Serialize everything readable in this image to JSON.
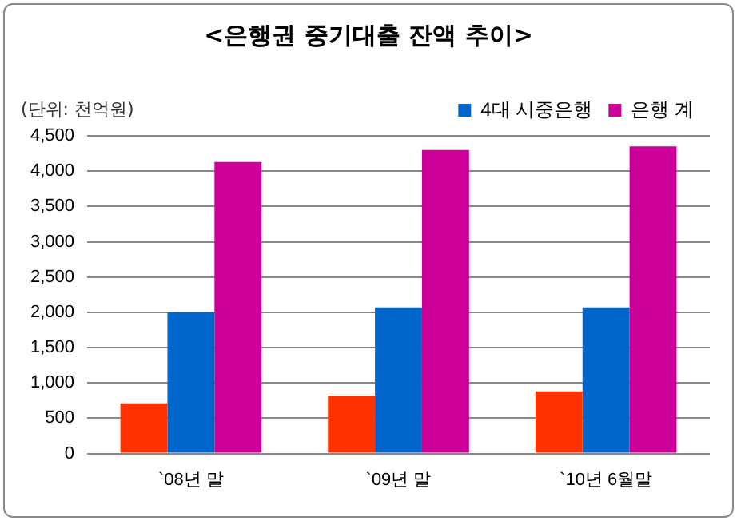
{
  "chart_data": {
    "type": "bar",
    "title": "<은행권 중기대출 잔액 추이>",
    "ylabel": "(단위: 천억원)",
    "categories": [
      "`08년 말",
      "`09년 말",
      "`10년 6월말"
    ],
    "series": [
      {
        "color": "#ff3300",
        "values": [
          710,
          820,
          880
        ]
      },
      {
        "name": "4대 시중은행",
        "color": "#0066cc",
        "values": [
          2000,
          2070,
          2070
        ]
      },
      {
        "name": "은행 계",
        "color": "#cc0099",
        "values": [
          4130,
          4300,
          4350
        ]
      }
    ],
    "ylim": [
      0,
      4500
    ],
    "yticks": [
      {
        "value": 0,
        "label": "0"
      },
      {
        "value": 500,
        "label": "500"
      },
      {
        "value": 1000,
        "label": "1,000"
      },
      {
        "value": 1500,
        "label": "1,500"
      },
      {
        "value": 2000,
        "label": "2,000"
      },
      {
        "value": 2500,
        "label": "2,500"
      },
      {
        "value": 3000,
        "label": "3,000"
      },
      {
        "value": 3500,
        "label": "3,500"
      },
      {
        "value": 4000,
        "label": "4,000"
      },
      {
        "value": 4500,
        "label": "4,500"
      }
    ],
    "grid": "y",
    "legend": "top right"
  }
}
